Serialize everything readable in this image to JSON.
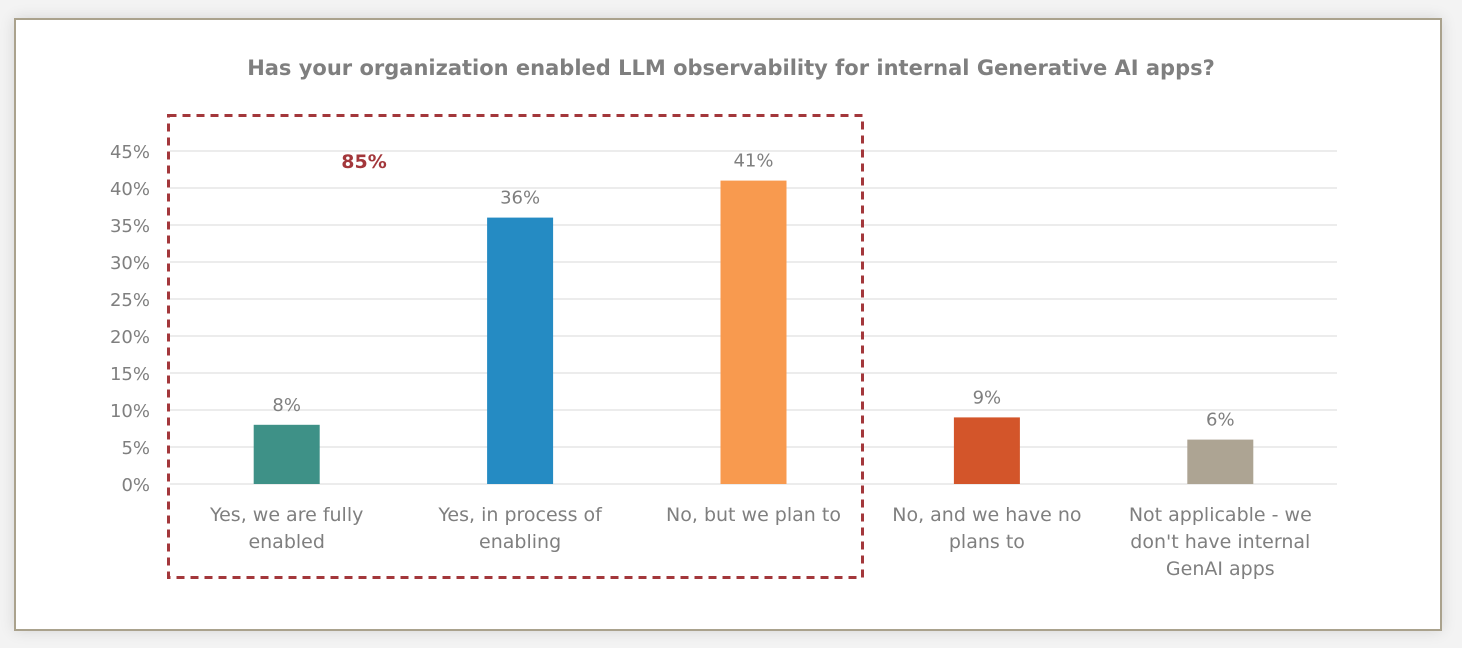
{
  "chart_data": {
    "type": "bar",
    "title": "Has your organization enabled LLM observability for internal Generative AI apps?",
    "categories": [
      [
        "Yes, we are fully",
        "enabled"
      ],
      [
        "Yes, in process of",
        "enabling"
      ],
      [
        "No, but we plan to"
      ],
      [
        "No, and we have no",
        "plans to"
      ],
      [
        "Not applicable - we",
        "don't have internal",
        "GenAI apps"
      ]
    ],
    "values": [
      8,
      36,
      41,
      9,
      6
    ],
    "data_labels": [
      "8%",
      "36%",
      "41%",
      "9%",
      "6%"
    ],
    "colors": [
      "#3e9187",
      "#258bc3",
      "#f89a4f",
      "#d3552a",
      "#ada493"
    ],
    "ylim": [
      0,
      45
    ],
    "yticks": [
      "0%",
      "5%",
      "10%",
      "15%",
      "20%",
      "25%",
      "30%",
      "35%",
      "40%",
      "45%"
    ],
    "grid": true,
    "xlabel": "",
    "ylabel": "",
    "annotation": {
      "text": "85%",
      "color": "#a3373b",
      "highlighted_categories": [
        0,
        1,
        2
      ]
    }
  }
}
